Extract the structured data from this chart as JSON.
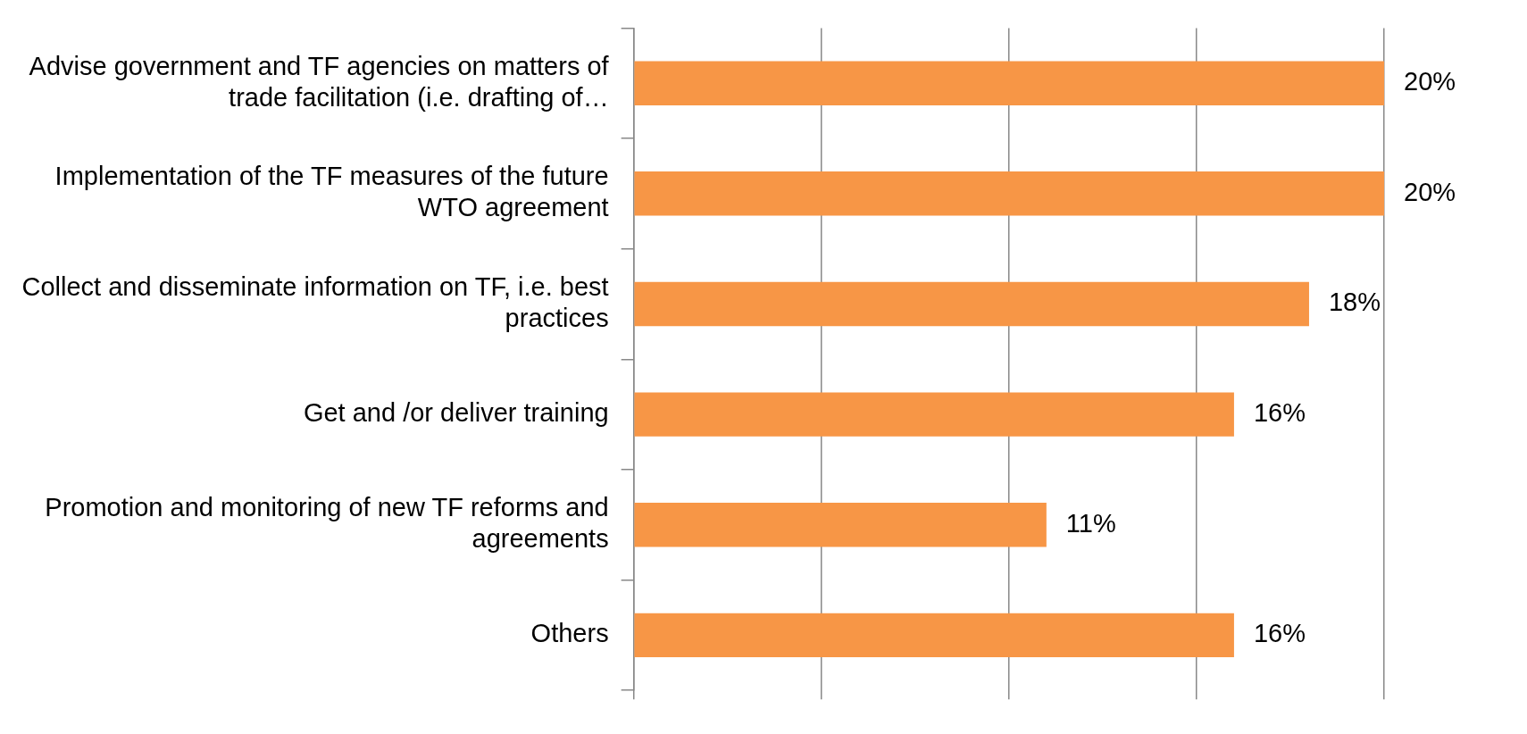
{
  "chart_data": {
    "type": "bar",
    "orientation": "horizontal",
    "categories": [
      "Advise government and TF agencies on matters of trade facilitation (i.e. drafting of…",
      "Implementation of the TF measures of the future WTO agreement",
      "Collect and disseminate information on TF, i.e. best practices",
      "Get and /or deliver training",
      "Promotion and monitoring of new TF reforms and agreements",
      "Others"
    ],
    "values": [
      20,
      20,
      18,
      16,
      11,
      16
    ],
    "value_labels": [
      "20%",
      "20%",
      "18%",
      "16%",
      "11%",
      "16%"
    ],
    "color": "#f79646",
    "xlim": [
      0,
      20
    ],
    "xticks": [
      {
        "value": 0,
        "label": null
      },
      {
        "value": 5,
        "label": null
      },
      {
        "value": 10,
        "label": null
      },
      {
        "value": 15,
        "label": null
      },
      {
        "value": 20,
        "label": null
      }
    ],
    "grid": "x",
    "tick_labels": "y",
    "legend": false
  }
}
